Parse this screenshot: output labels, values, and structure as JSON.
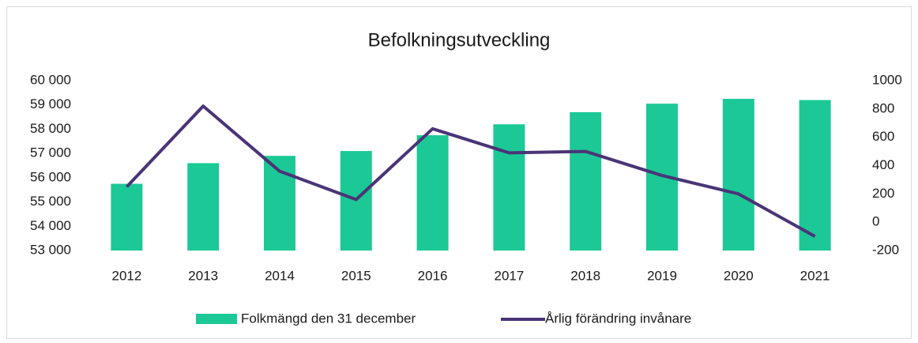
{
  "chart_data": {
    "type": "bar_line",
    "title": "Befolkningsutveckling",
    "categories": [
      "2012",
      "2013",
      "2014",
      "2015",
      "2016",
      "2017",
      "2018",
      "2019",
      "2020",
      "2021"
    ],
    "series": [
      {
        "name": "Folkmängd den 31 december",
        "type": "bar",
        "color": "#1cc896",
        "values": [
          55750,
          56600,
          56900,
          57100,
          57750,
          58200,
          58700,
          59050,
          59250,
          59200
        ]
      },
      {
        "name": "Årlig förändring invånare",
        "type": "line",
        "axis": "y2",
        "color": "#4a3476",
        "values": [
          250,
          820,
          360,
          160,
          660,
          490,
          500,
          330,
          200,
          -100
        ]
      }
    ],
    "ylim": [
      53000,
      60000
    ],
    "yticks": [
      {
        "value": 53000,
        "label": "53 000"
      },
      {
        "value": 54000,
        "label": "54 000"
      },
      {
        "value": 55000,
        "label": "55 000"
      },
      {
        "value": 56000,
        "label": "56 000"
      },
      {
        "value": 57000,
        "label": "57 000"
      },
      {
        "value": 58000,
        "label": "58 000"
      },
      {
        "value": 59000,
        "label": "59 000"
      },
      {
        "value": 60000,
        "label": "60 000"
      }
    ],
    "y2lim": [
      -200,
      1000
    ],
    "y2ticks": [
      -200,
      0,
      200,
      400,
      600,
      800,
      1000
    ],
    "grid": false,
    "legend": "bottom"
  }
}
